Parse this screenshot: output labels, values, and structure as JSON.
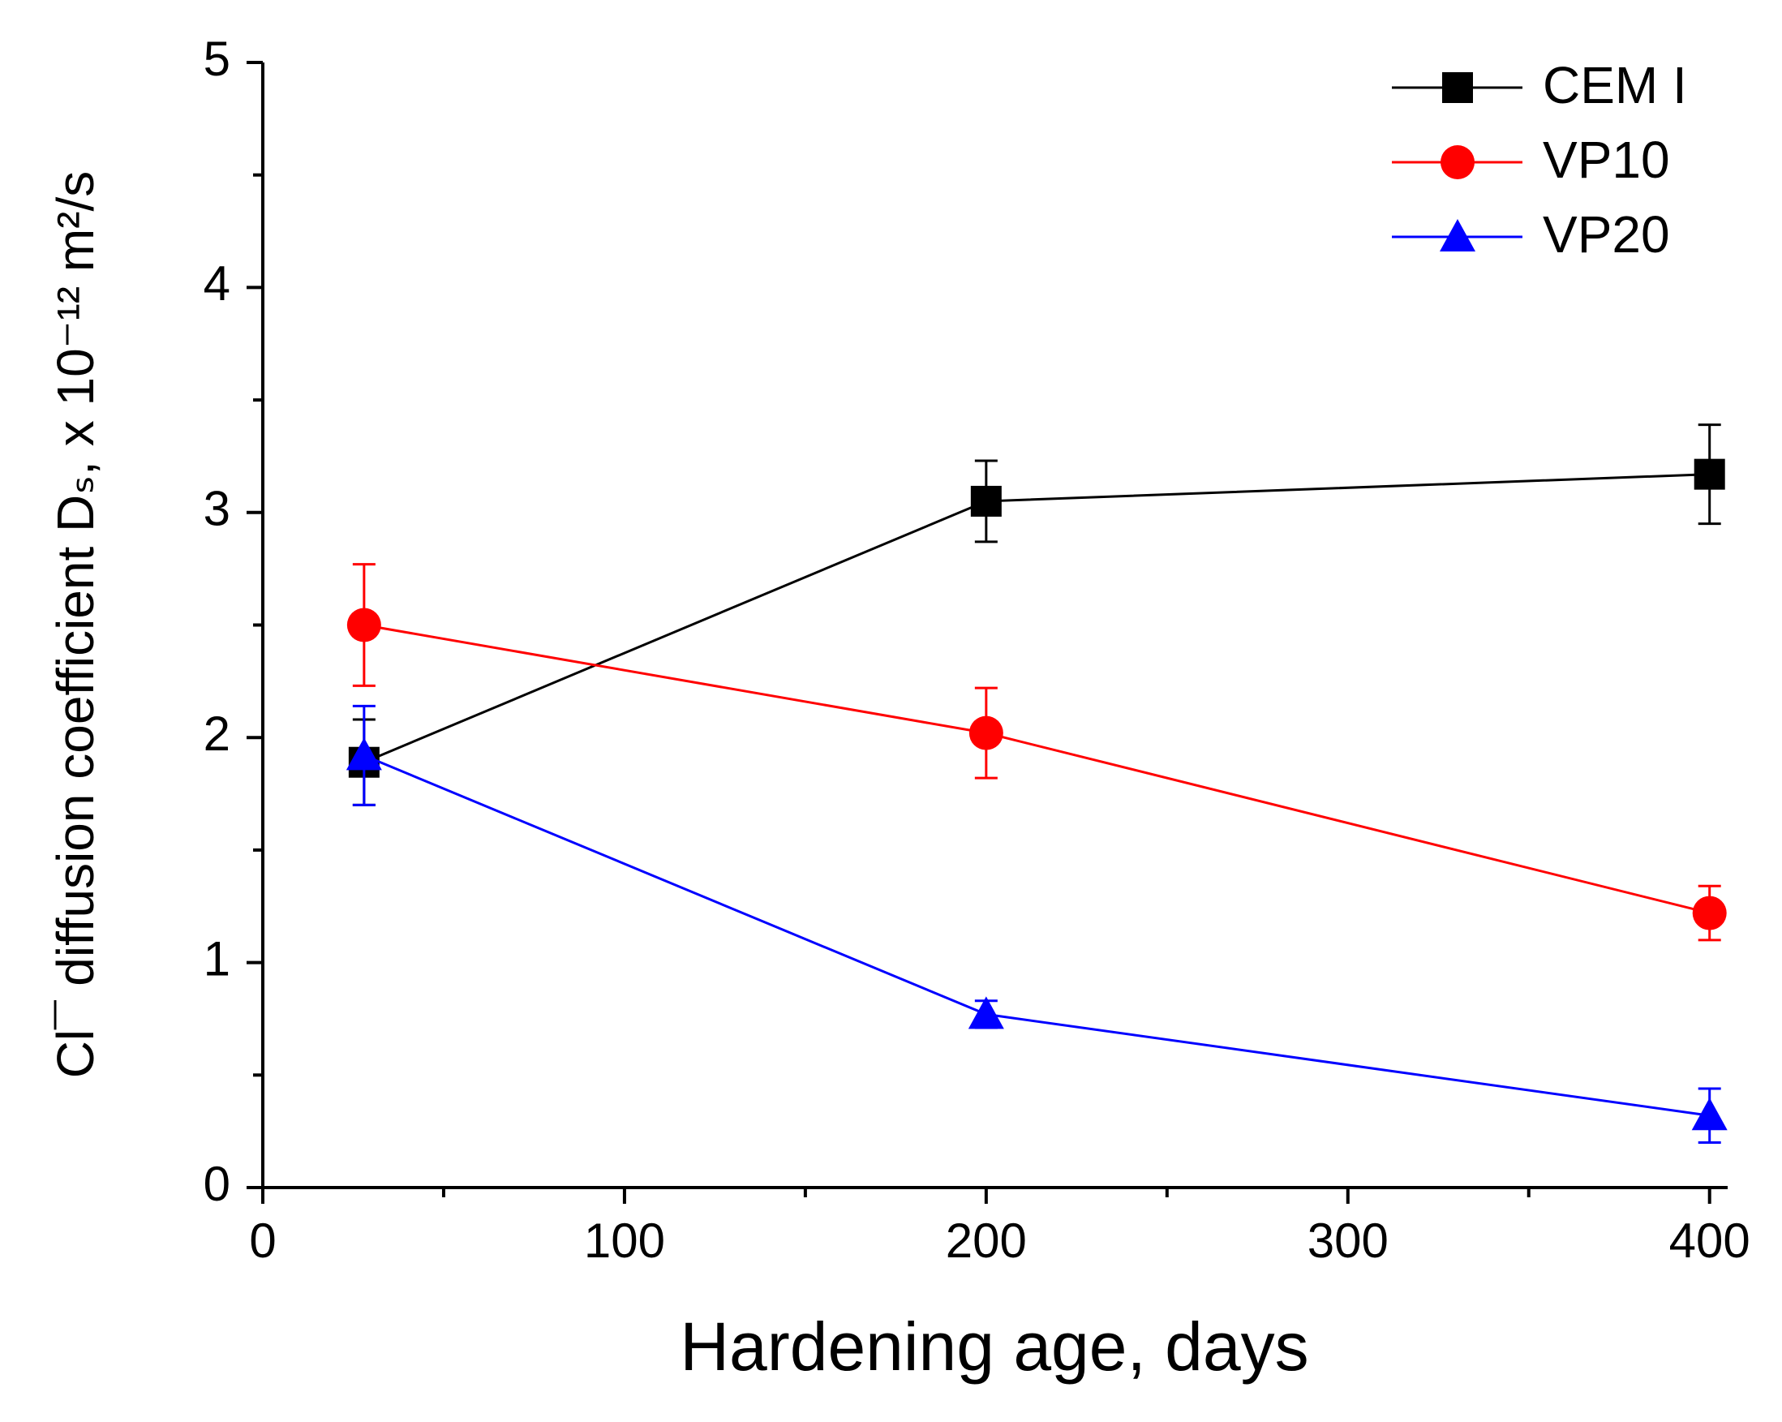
{
  "chart_data": {
    "type": "line",
    "x_label": "Hardening age, days",
    "y_label": "Cl¯ diffusion coefficient Dₛ, x 10⁻¹² m²/s",
    "xlim": [
      0,
      405
    ],
    "ylim": [
      0,
      5
    ],
    "xticks": [
      0,
      100,
      200,
      300,
      400
    ],
    "yticks": [
      0,
      1,
      2,
      3,
      4,
      5
    ],
    "xticks_minor": [
      50,
      150,
      250,
      350
    ],
    "yticks_minor": [
      0.5,
      1.5,
      2.5,
      3.5,
      4.5
    ],
    "legend": "top-right",
    "series": [
      {
        "name": "CEM I",
        "color": "#000000",
        "marker": "square",
        "x": [
          28,
          200,
          400
        ],
        "values": [
          1.89,
          3.05,
          3.17
        ],
        "errors": [
          0.19,
          0.18,
          0.22
        ]
      },
      {
        "name": "VP10",
        "color": "#ff0000",
        "marker": "circle",
        "x": [
          28,
          200,
          400
        ],
        "values": [
          2.5,
          2.02,
          1.22
        ],
        "errors": [
          0.27,
          0.2,
          0.12
        ]
      },
      {
        "name": "VP20",
        "color": "#0000ff",
        "marker": "triangle",
        "x": [
          28,
          200,
          400
        ],
        "values": [
          1.92,
          0.77,
          0.32
        ],
        "errors": [
          0.22,
          0.06,
          0.12
        ]
      }
    ]
  }
}
